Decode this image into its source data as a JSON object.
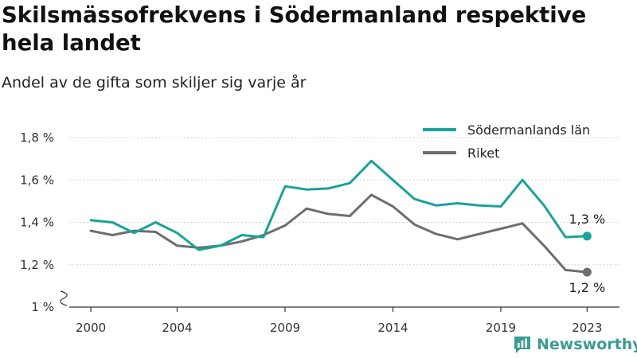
{
  "chart_data": {
    "type": "line",
    "title": "Skilsmässofrekvens i Södermanland respektive hela landet",
    "subtitle": "Andel av de gifta som skiljer sig varje år",
    "x": [
      2000,
      2001,
      2002,
      2003,
      2004,
      2005,
      2006,
      2007,
      2008,
      2009,
      2010,
      2011,
      2012,
      2013,
      2014,
      2015,
      2016,
      2017,
      2018,
      2019,
      2020,
      2021,
      2022,
      2023
    ],
    "x_ticks": [
      2000,
      2004,
      2009,
      2014,
      2019,
      2023
    ],
    "y_ticks": [
      {
        "value": 1.0,
        "label": "1 %"
      },
      {
        "value": 1.2,
        "label": "1,2 %"
      },
      {
        "value": 1.4,
        "label": "1,4 %"
      },
      {
        "value": 1.6,
        "label": "1,6 %"
      },
      {
        "value": 1.8,
        "label": "1,8 %"
      }
    ],
    "ylim": [
      1.0,
      1.8
    ],
    "xlim": [
      1999.0,
      2024.5
    ],
    "y_axis_break": true,
    "legend_position": "top-right",
    "series": [
      {
        "name": "Södermanlands län",
        "color": "#1aa398",
        "values": [
          1.41,
          1.4,
          1.35,
          1.4,
          1.35,
          1.27,
          1.29,
          1.34,
          1.33,
          1.57,
          1.555,
          1.56,
          1.585,
          1.69,
          1.6,
          1.51,
          1.48,
          1.49,
          1.48,
          1.475,
          1.6,
          1.48,
          1.33,
          1.335
        ],
        "end_label": "1,3 %"
      },
      {
        "name": "Riket",
        "color": "#6d6d72",
        "values": [
          1.36,
          1.34,
          1.36,
          1.355,
          1.29,
          1.28,
          1.29,
          1.31,
          1.34,
          1.385,
          1.465,
          1.44,
          1.43,
          1.53,
          1.475,
          1.39,
          1.345,
          1.32,
          1.345,
          1.37,
          1.395,
          1.29,
          1.175,
          1.165
        ],
        "end_label": "1,2 %"
      }
    ]
  },
  "brand": {
    "name": "Newsworthy",
    "logo_icon": "bar-chart-speech-bubble-icon",
    "color": "#3a9c92"
  }
}
